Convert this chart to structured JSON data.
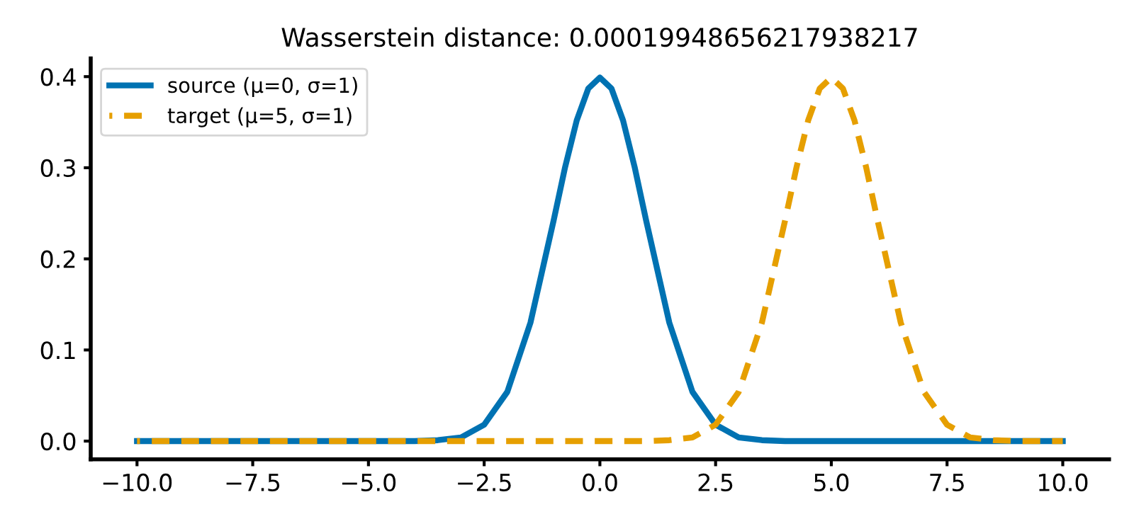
{
  "chart_data": {
    "type": "line",
    "title": "Wasserstein distance: 0.00019948656217938217",
    "series": [
      {
        "name": "source (μ=0, σ=1)",
        "color": "#0072b2",
        "line_style": "solid",
        "x": [
          -10,
          -8,
          -6,
          -4,
          -3.5,
          -3,
          -2.5,
          -2,
          -1.5,
          -1,
          -0.75,
          -0.5,
          -0.25,
          0,
          0.25,
          0.5,
          0.75,
          1,
          1.5,
          2,
          2.5,
          3,
          3.5,
          4,
          6,
          8,
          10
        ],
        "values": [
          0,
          0,
          0,
          0,
          0.001,
          0.004,
          0.018,
          0.054,
          0.13,
          0.242,
          0.301,
          0.352,
          0.387,
          0.399,
          0.387,
          0.352,
          0.301,
          0.242,
          0.13,
          0.054,
          0.018,
          0.004,
          0.001,
          0,
          0,
          0,
          0
        ]
      },
      {
        "name": "target (μ=5, σ=1)",
        "color": "#e69f00",
        "line_style": "dashed",
        "x": [
          -10,
          -5,
          0,
          1,
          1.5,
          2,
          2.5,
          3,
          3.5,
          4,
          4.25,
          4.5,
          4.75,
          5,
          5.25,
          5.5,
          5.75,
          6,
          6.5,
          7,
          7.5,
          8,
          8.5,
          9,
          10
        ],
        "values": [
          0,
          0,
          0,
          0,
          0.001,
          0.004,
          0.018,
          0.054,
          0.13,
          0.242,
          0.301,
          0.352,
          0.387,
          0.399,
          0.387,
          0.352,
          0.301,
          0.242,
          0.13,
          0.054,
          0.018,
          0.004,
          0.001,
          0,
          0
        ]
      }
    ],
    "xlim": [
      -11,
      11
    ],
    "ylim": [
      -0.02,
      0.42
    ],
    "xticks": [
      {
        "value": -10,
        "label": "−10.0"
      },
      {
        "value": -7.5,
        "label": "−7.5"
      },
      {
        "value": -5,
        "label": "−5.0"
      },
      {
        "value": -2.5,
        "label": "−2.5"
      },
      {
        "value": 0,
        "label": "0.0"
      },
      {
        "value": 2.5,
        "label": "2.5"
      },
      {
        "value": 5,
        "label": "5.0"
      },
      {
        "value": 7.5,
        "label": "7.5"
      },
      {
        "value": 10,
        "label": "10.0"
      }
    ],
    "yticks": [
      {
        "value": 0,
        "label": "0.0"
      },
      {
        "value": 0.1,
        "label": "0.1"
      },
      {
        "value": 0.2,
        "label": "0.2"
      },
      {
        "value": 0.3,
        "label": "0.3"
      },
      {
        "value": 0.4,
        "label": "0.4"
      }
    ],
    "legend": "top left",
    "grid": false,
    "marker": "none"
  }
}
